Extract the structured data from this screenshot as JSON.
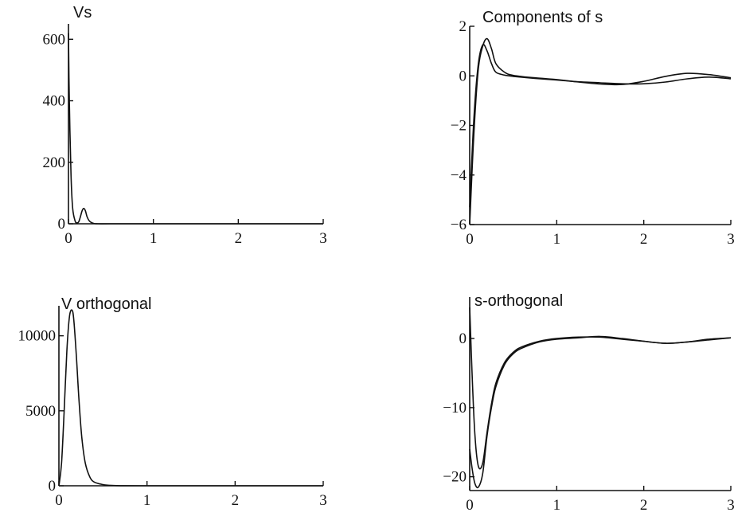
{
  "chart_data": [
    {
      "type": "line",
      "title": "Vs",
      "xlim": [
        0,
        3
      ],
      "ylim": [
        0,
        650
      ],
      "xticks": [
        0,
        1,
        2,
        3
      ],
      "yticks": [
        0,
        200,
        400,
        600
      ],
      "xtick_labels": [
        "0",
        "1",
        "2",
        "3"
      ],
      "ytick_labels": [
        "0",
        "200",
        "400",
        "600"
      ],
      "series": [
        {
          "x": [
            0,
            0.01,
            0.03,
            0.05,
            0.08,
            0.1,
            0.12,
            0.14,
            0.16,
            0.18,
            0.2,
            0.22,
            0.25,
            0.3,
            0.35,
            0.5,
            1,
            2,
            3
          ],
          "y": [
            620,
            400,
            160,
            50,
            8,
            3,
            6,
            22,
            42,
            50,
            42,
            22,
            8,
            1,
            0,
            0,
            0,
            0,
            0
          ]
        }
      ]
    },
    {
      "type": "line",
      "title": "Components of s",
      "xlim": [
        0,
        3
      ],
      "ylim": [
        -6,
        2
      ],
      "xticks": [
        0,
        1,
        2,
        3
      ],
      "yticks": [
        -6,
        -4,
        -2,
        0,
        2
      ],
      "xtick_labels": [
        "0",
        "1",
        "2",
        "3"
      ],
      "ytick_labels": [
        "-6",
        "-4",
        "-2",
        "0",
        "2"
      ],
      "series": [
        {
          "x": [
            0,
            0.05,
            0.1,
            0.15,
            0.2,
            0.25,
            0.3,
            0.4,
            0.5,
            0.75,
            1,
            1.25,
            1.5,
            1.75,
            2,
            2.25,
            2.5,
            2.75,
            3
          ],
          "y": [
            -6,
            -2.2,
            0.3,
            1.2,
            1.5,
            1.1,
            0.5,
            0.15,
            0.02,
            -0.08,
            -0.15,
            -0.25,
            -0.33,
            -0.35,
            -0.22,
            -0.02,
            0.1,
            0.05,
            -0.08
          ]
        },
        {
          "x": [
            0,
            0.05,
            0.1,
            0.15,
            0.2,
            0.25,
            0.3,
            0.4,
            0.5,
            0.75,
            1,
            1.25,
            1.5,
            1.75,
            2,
            2.25,
            2.5,
            2.75,
            3
          ],
          "y": [
            -5.3,
            -1.6,
            0.5,
            1.25,
            1.0,
            0.5,
            0.15,
            0.03,
            -0.02,
            -0.1,
            -0.17,
            -0.24,
            -0.28,
            -0.32,
            -0.32,
            -0.25,
            -0.12,
            -0.05,
            -0.12
          ]
        }
      ]
    },
    {
      "type": "line",
      "title": "V orthogonal",
      "xlim": [
        0,
        3
      ],
      "ylim": [
        0,
        12000
      ],
      "xticks": [
        0,
        1,
        2,
        3
      ],
      "yticks": [
        0,
        5000,
        10000
      ],
      "xtick_labels": [
        "0",
        "1",
        "2",
        "3"
      ],
      "ytick_labels": [
        "0",
        "5000",
        "10000"
      ],
      "series": [
        {
          "x": [
            0,
            0.03,
            0.06,
            0.09,
            0.12,
            0.15,
            0.17,
            0.2,
            0.23,
            0.26,
            0.3,
            0.35,
            0.4,
            0.5,
            0.6,
            0.7,
            1,
            2,
            3
          ],
          "y": [
            0,
            1500,
            5000,
            9000,
            11300,
            11700,
            11000,
            8500,
            5500,
            3200,
            1500,
            600,
            250,
            80,
            20,
            5,
            0,
            0,
            0
          ]
        }
      ]
    },
    {
      "type": "line",
      "title": "s-orthogonal",
      "xlim": [
        0,
        3
      ],
      "ylim": [
        -22,
        6
      ],
      "xticks": [
        0,
        1,
        2,
        3
      ],
      "yticks": [
        -20,
        -10,
        0
      ],
      "xtick_labels": [
        "0",
        "1",
        "2",
        "3"
      ],
      "ytick_labels": [
        "-20",
        "-10",
        "0"
      ],
      "series": [
        {
          "x": [
            0,
            0.03,
            0.06,
            0.1,
            0.15,
            0.2,
            0.25,
            0.3,
            0.4,
            0.5,
            0.6,
            0.8,
            1,
            1.25,
            1.5,
            1.75,
            2,
            2.25,
            2.5,
            2.75,
            3
          ],
          "y": [
            4.5,
            -6,
            -14,
            -18.5,
            -18,
            -13.5,
            -9.5,
            -6.5,
            -3.5,
            -2,
            -1.2,
            -0.4,
            0,
            0.2,
            0.2,
            -0.1,
            -0.4,
            -0.7,
            -0.5,
            -0.1,
            0.1
          ]
        },
        {
          "x": [
            0,
            0.03,
            0.06,
            0.1,
            0.15,
            0.2,
            0.25,
            0.3,
            0.4,
            0.5,
            0.6,
            0.8,
            1,
            1.25,
            1.5,
            1.75,
            2,
            2.25,
            2.5,
            2.75,
            3
          ],
          "y": [
            -16,
            -19,
            -21,
            -21.5,
            -19.5,
            -14,
            -10,
            -7,
            -3.8,
            -2.2,
            -1.4,
            -0.5,
            -0.1,
            0.1,
            0.3,
            0,
            -0.4,
            -0.7,
            -0.5,
            -0.2,
            0.1
          ]
        }
      ]
    }
  ]
}
